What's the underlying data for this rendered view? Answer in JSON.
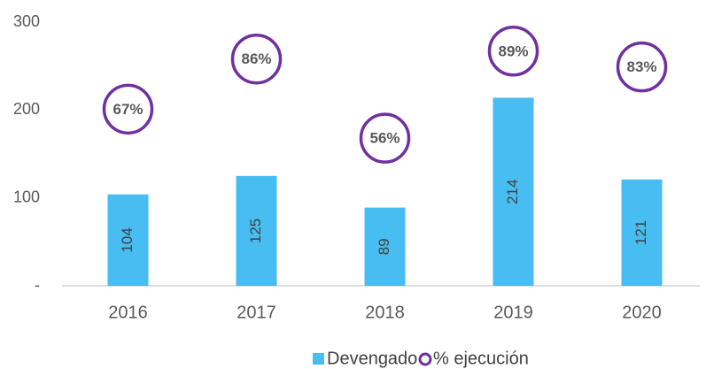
{
  "chart_data": {
    "type": "bar",
    "categories": [
      "2016",
      "2017",
      "2018",
      "2019",
      "2020"
    ],
    "series": [
      {
        "name": "Devengado",
        "color": "#47bdf1",
        "values": [
          104,
          125,
          89,
          214,
          121
        ]
      },
      {
        "name": "% ejecución",
        "color": "#7030a0",
        "axis": "y2",
        "values": [
          67,
          86,
          56,
          89,
          83
        ],
        "value_labels": [
          "67%",
          "86%",
          "56%",
          "89%",
          "83%"
        ]
      }
    ],
    "ylim": [
      0,
      300
    ],
    "yticks": [
      {
        "value": 0,
        "label": "-"
      },
      100,
      200,
      300
    ],
    "y2lim": [
      0,
      100
    ],
    "legend": "bottom"
  }
}
